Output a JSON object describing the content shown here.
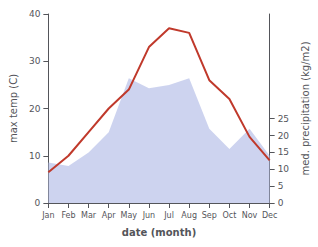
{
  "chart_data": {
    "type": "line",
    "xlabel": "date (month)",
    "ylabel": "max temp (C)",
    "y2label": "med. precipitation (kg/m2)",
    "categories": [
      "Jan",
      "Feb",
      "Mar",
      "Apr",
      "May",
      "Jun",
      "Jul",
      "Aug",
      "Sep",
      "Oct",
      "Nov",
      "Dec"
    ],
    "series": [
      {
        "type": "area",
        "axis": "y2",
        "color": "#b8c0e8",
        "values": [
          12,
          11,
          15,
          21,
          37,
          34,
          35,
          37,
          22,
          16,
          22,
          14
        ]
      },
      {
        "type": "line",
        "color": "#c0392b",
        "values": [
          6.5,
          10,
          15,
          20,
          24,
          33,
          37,
          36,
          26,
          22,
          14,
          9
        ]
      }
    ],
    "ylim": [
      0,
      40
    ],
    "yticks": [
      0,
      10,
      20,
      30,
      40
    ],
    "y2lim": [
      0,
      56.0
    ],
    "y2ticks": [
      0,
      5,
      10,
      15,
      20,
      25
    ],
    "grid": false
  }
}
